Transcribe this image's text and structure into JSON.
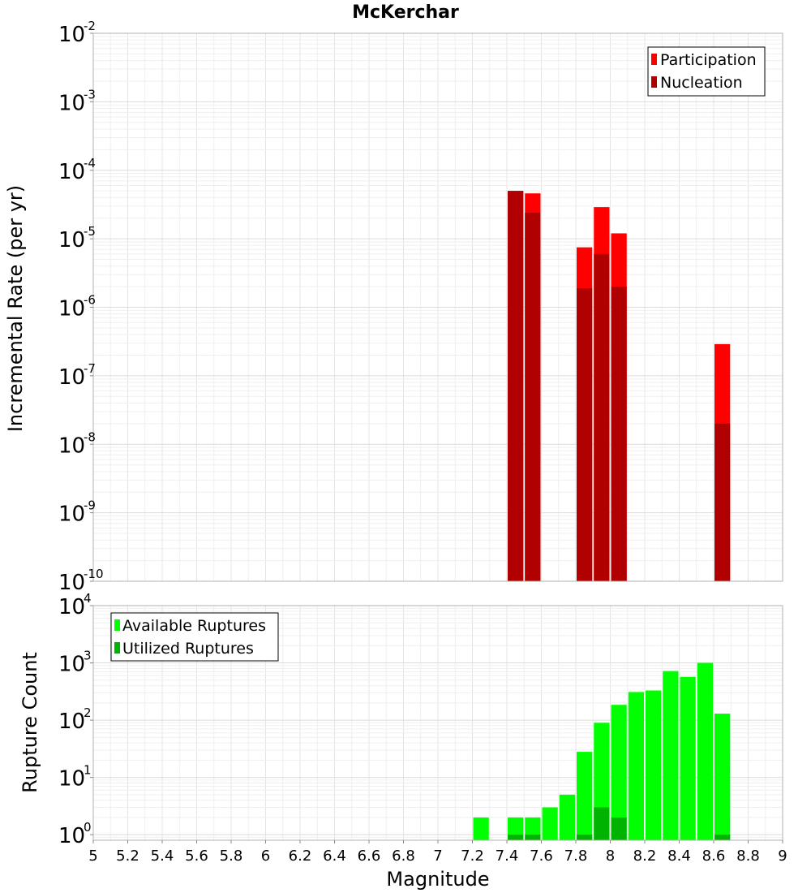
{
  "chart_data": [
    {
      "type": "bar",
      "title": "McKerchar",
      "xlabel": "",
      "ylabel": "Incremental Rate (per yr)",
      "yscale": "log",
      "xlim": [
        5,
        9
      ],
      "ylim": [
        1e-10,
        0.01
      ],
      "ytick_exponents": [
        "-2",
        "-3",
        "-4",
        "-5",
        "-6",
        "-7",
        "-8",
        "-9",
        "-10"
      ],
      "ytick_base": "10",
      "legend_position": "top-right",
      "bar_width": 0.1,
      "series": [
        {
          "name": "Participation",
          "color": "#ff0000",
          "x": [
            7.45,
            7.55,
            7.85,
            7.95,
            8.05,
            8.65
          ],
          "values": [
            5e-05,
            4.6e-05,
            7.5e-06,
            2.9e-05,
            1.2e-05,
            2.9e-07
          ]
        },
        {
          "name": "Nucleation",
          "color": "#b00000",
          "x": [
            7.45,
            7.55,
            7.85,
            7.95,
            8.05,
            8.65
          ],
          "values": [
            5e-05,
            2.4e-05,
            1.9e-06,
            6e-06,
            2e-06,
            2e-08
          ]
        }
      ]
    },
    {
      "type": "bar",
      "title": "",
      "xlabel": "Magnitude",
      "ylabel": "Rupture Count",
      "yscale": "log",
      "xlim": [
        5,
        9
      ],
      "ylim": [
        0.8,
        10000
      ],
      "ytick_exponents": [
        "4",
        "3",
        "2",
        "1",
        "0"
      ],
      "ytick_base": "10",
      "xticks": [
        "5",
        "5.2",
        "5.4",
        "5.6",
        "5.8",
        "6",
        "6.2",
        "6.4",
        "6.6",
        "6.8",
        "7",
        "7.2",
        "7.4",
        "7.6",
        "7.8",
        "8",
        "8.2",
        "8.4",
        "8.6",
        "8.8",
        "9"
      ],
      "legend_position": "top-left",
      "bar_width": 0.1,
      "series": [
        {
          "name": "Available Ruptures",
          "color": "#00ff00",
          "x": [
            7.25,
            7.45,
            7.55,
            7.65,
            7.75,
            7.85,
            7.95,
            8.05,
            8.15,
            8.25,
            8.35,
            8.45,
            8.55,
            8.65
          ],
          "values": [
            2,
            2,
            2,
            3,
            5,
            28,
            90,
            185,
            310,
            330,
            720,
            570,
            1000,
            130
          ]
        },
        {
          "name": "Utilized Ruptures",
          "color": "#00b300",
          "x": [
            7.45,
            7.55,
            7.85,
            7.95,
            8.05,
            8.65
          ],
          "values": [
            1,
            1,
            1,
            3,
            2,
            1
          ]
        }
      ]
    }
  ]
}
